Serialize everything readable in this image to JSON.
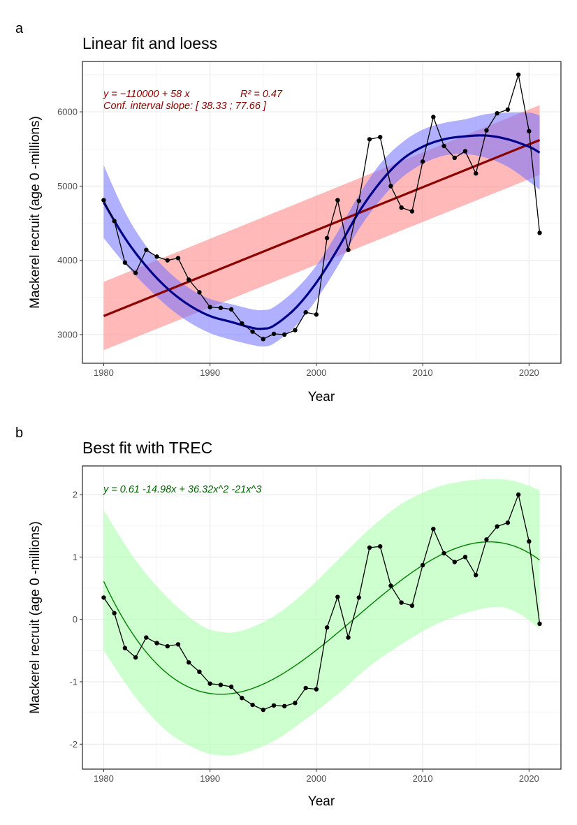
{
  "chart_data": [
    {
      "tag": "a",
      "type": "line",
      "title": "Linear fit and loess",
      "xlabel": "Year",
      "ylabel": "Mackerel recruit (age 0 -millions)",
      "xlim": [
        1978,
        2023
      ],
      "ylim": [
        2614,
        6678
      ],
      "xticks": [
        1980,
        1990,
        2000,
        2010,
        2020
      ],
      "yticks": [
        3000,
        4000,
        5000,
        6000
      ],
      "grid": true,
      "annotations": [
        "y = −110000 + 58 x",
        "R² = 0.47",
        "Conf. interval slope:  [ 38.33 ; 77.66 ]"
      ],
      "annotation_color": "#8b0000",
      "x": [
        1980,
        1981,
        1982,
        1983,
        1984,
        1985,
        1986,
        1987,
        1988,
        1989,
        1990,
        1991,
        1992,
        1993,
        1994,
        1995,
        1996,
        1997,
        1998,
        1999,
        2000,
        2001,
        2002,
        2003,
        2004,
        2005,
        2006,
        2007,
        2008,
        2009,
        2010,
        2011,
        2012,
        2013,
        2014,
        2015,
        2016,
        2017,
        2018,
        2019,
        2020,
        2021
      ],
      "series": [
        {
          "kind": "observed",
          "color": "#000000",
          "values": [
            4810,
            4530,
            3970,
            3830,
            4140,
            4050,
            4000,
            4030,
            3740,
            3570,
            3370,
            3360,
            3340,
            3150,
            3040,
            2940,
            3010,
            3000,
            3060,
            3300,
            3270,
            4300,
            4810,
            4140,
            4800,
            5630,
            5660,
            5000,
            4710,
            4660,
            5330,
            5930,
            5540,
            5380,
            5470,
            5170,
            5750,
            5980,
            6030,
            6500,
            5740,
            4370
          ]
        },
        {
          "kind": "linear-fit",
          "color": "#8b0000",
          "band_color": "#ff8080",
          "x": [
            1980,
            2021
          ],
          "values": [
            3250,
            5620
          ],
          "lower": [
            2790,
            5150
          ],
          "upper": [
            3710,
            6090
          ]
        },
        {
          "kind": "loess",
          "color": "#00008b",
          "band_color": "#7070ff",
          "x": [
            1980,
            1982,
            1984,
            1986,
            1988,
            1990,
            1992,
            1994,
            1995,
            1996,
            1998,
            2000,
            2002,
            2004,
            2006,
            2008,
            2010,
            2012,
            2014,
            2016,
            2018,
            2020,
            2021
          ],
          "values": [
            4780,
            4300,
            3920,
            3620,
            3400,
            3250,
            3170,
            3090,
            3080,
            3120,
            3350,
            3700,
            4150,
            4650,
            5050,
            5350,
            5530,
            5630,
            5670,
            5680,
            5630,
            5530,
            5450
          ],
          "lower": [
            4300,
            3950,
            3650,
            3380,
            3170,
            3020,
            2930,
            2860,
            2840,
            2880,
            3110,
            3470,
            3920,
            4420,
            4810,
            5110,
            5300,
            5410,
            5430,
            5380,
            5260,
            5060,
            4950
          ],
          "upper": [
            5280,
            4650,
            4190,
            3860,
            3630,
            3480,
            3410,
            3340,
            3330,
            3370,
            3600,
            3930,
            4380,
            4880,
            5300,
            5580,
            5760,
            5850,
            5900,
            5970,
            5990,
            5990,
            5950
          ]
        }
      ]
    },
    {
      "tag": "b",
      "type": "line",
      "title": "Best fit with TREC",
      "xlabel": "Year",
      "ylabel": "Mackerel recruit (age 0 -millions)",
      "xlim": [
        1978,
        2023
      ],
      "ylim": [
        -2.4,
        2.46
      ],
      "xticks": [
        1980,
        1990,
        2000,
        2010,
        2020
      ],
      "yticks": [
        -2,
        -1,
        0,
        1,
        2
      ],
      "grid": true,
      "annotations": [
        "y =  0.61   -14.98x  + 36.32x^2   -21x^3"
      ],
      "annotation_color": "#006400",
      "x": [
        1980,
        1981,
        1982,
        1983,
        1984,
        1985,
        1986,
        1987,
        1988,
        1989,
        1990,
        1991,
        1992,
        1993,
        1994,
        1995,
        1996,
        1997,
        1998,
        1999,
        2000,
        2001,
        2002,
        2003,
        2004,
        2005,
        2006,
        2007,
        2008,
        2009,
        2010,
        2011,
        2012,
        2013,
        2014,
        2015,
        2016,
        2017,
        2018,
        2019,
        2020,
        2021
      ],
      "series": [
        {
          "kind": "observed",
          "color": "#000000",
          "values": [
            0.35,
            0.1,
            -0.46,
            -0.61,
            -0.29,
            -0.38,
            -0.43,
            -0.4,
            -0.69,
            -0.84,
            -1.03,
            -1.05,
            -1.08,
            -1.26,
            -1.37,
            -1.45,
            -1.38,
            -1.39,
            -1.34,
            -1.1,
            -1.12,
            -0.13,
            0.36,
            -0.29,
            0.35,
            1.15,
            1.17,
            0.54,
            0.27,
            0.22,
            0.87,
            1.45,
            1.06,
            0.92,
            1.0,
            0.71,
            1.28,
            1.49,
            1.55,
            2.0,
            1.25,
            -0.07
          ]
        },
        {
          "kind": "cubic-fit",
          "color": "#008000",
          "band_color": "#b3ffb3",
          "coefficients": [
            0.61,
            -14.98,
            36.32,
            -21
          ],
          "x": [
            1980,
            1983,
            1986,
            1989,
            1991,
            1993,
            1996,
            1999,
            2002,
            2005,
            2008,
            2011,
            2014,
            2017,
            2019,
            2021
          ],
          "lower": [
            -0.5,
            -1.25,
            -1.8,
            -2.1,
            -2.18,
            -2.15,
            -1.95,
            -1.6,
            -1.2,
            -0.75,
            -0.4,
            -0.1,
            0.1,
            0.2,
            0.1,
            -0.15
          ],
          "upper": [
            1.75,
            0.95,
            0.35,
            -0.08,
            -0.2,
            -0.18,
            0.05,
            0.45,
            0.95,
            1.45,
            1.85,
            2.1,
            2.22,
            2.25,
            2.2,
            2.07
          ]
        }
      ]
    }
  ]
}
